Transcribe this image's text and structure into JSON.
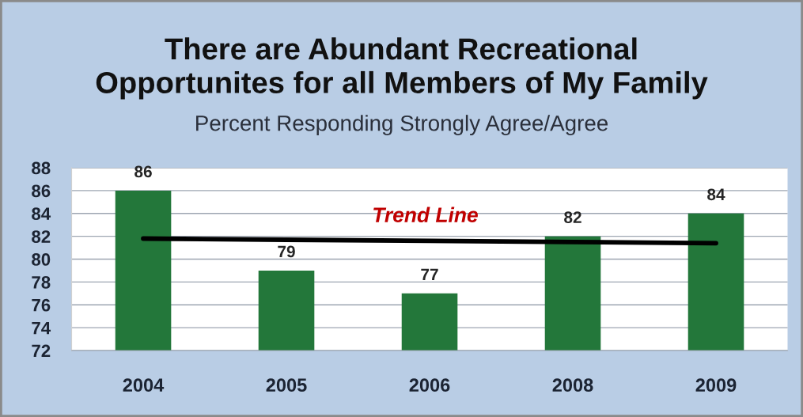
{
  "chart_data": {
    "type": "bar",
    "title": "There are Abundant Recreational\nOpportunites for all Members of My Family",
    "subtitle": "Percent Responding Strongly Agree/Agree",
    "categories": [
      "2004",
      "2005",
      "2006",
      "2008",
      "2009"
    ],
    "series": [
      {
        "color": "#23773a",
        "values": [
          86,
          79,
          77,
          82,
          84
        ],
        "value_labels": [
          "86",
          "79",
          "77",
          "82",
          "84"
        ]
      },
      {
        "type": "line",
        "name": "Trend Line",
        "color": "#000000",
        "values": [
          81.8,
          81.7,
          81.6,
          81.5,
          81.4
        ]
      }
    ],
    "ylim": [
      72,
      88
    ],
    "yticks": [
      72,
      74,
      76,
      78,
      80,
      82,
      84,
      86,
      88
    ],
    "grid": "y"
  }
}
